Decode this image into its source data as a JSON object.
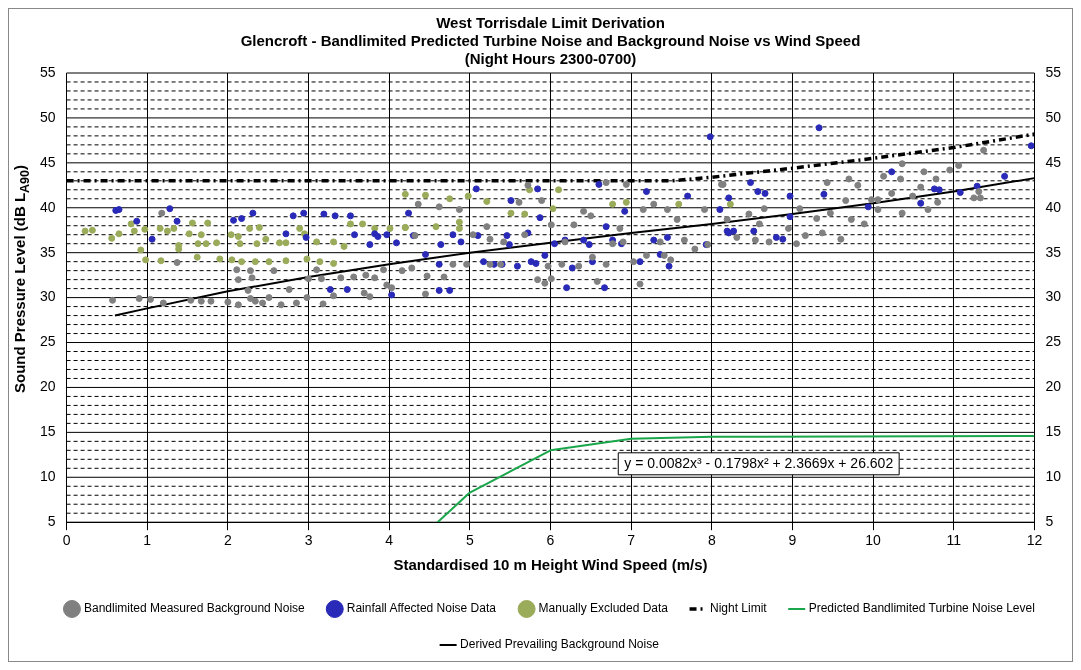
{
  "chart_data": {
    "type": "scatter",
    "title": "West Torrisdale Limit Derivation",
    "subtitle": "Glencroft - Bandlimited Predicted Turbine Noise and Background Noise vs Wind Speed\n(Night Hours 2300-0700)",
    "xlabel": "Standardised 10 m Height Wind Speed (m/s)",
    "ylabel": "Sound Pressure Level (dB L$_{A90}$)",
    "xlim": [
      0,
      12
    ],
    "xticks": [
      0,
      1,
      2,
      3,
      4,
      5,
      6,
      7,
      8,
      9,
      10,
      11,
      12
    ],
    "ylim": [
      5,
      55
    ],
    "yticks": [
      5,
      {
        "value": 6,
        "label": null
      },
      {
        "value": 7,
        "label": null
      },
      {
        "value": 8,
        "label": null
      },
      {
        "value": 9,
        "label": null
      },
      10,
      {
        "value": 11,
        "label": null
      },
      {
        "value": 12,
        "label": null
      },
      {
        "value": 13,
        "label": null
      },
      {
        "value": 14,
        "label": null
      },
      15,
      {
        "value": 16,
        "label": null
      },
      {
        "value": 17,
        "label": null
      },
      {
        "value": 18,
        "label": null
      },
      {
        "value": 19,
        "label": null
      },
      20,
      {
        "value": 21,
        "label": null
      },
      {
        "value": 22,
        "label": null
      },
      {
        "value": 23,
        "label": null
      },
      {
        "value": 24,
        "label": null
      },
      25,
      {
        "value": 26,
        "label": null
      },
      {
        "value": 27,
        "label": null
      },
      {
        "value": 28,
        "label": null
      },
      {
        "value": 29,
        "label": null
      },
      30,
      {
        "value": 31,
        "label": null
      },
      {
        "value": 32,
        "label": null
      },
      {
        "value": 33,
        "label": null
      },
      {
        "value": 34,
        "label": null
      },
      35,
      {
        "value": 36,
        "label": null
      },
      {
        "value": 37,
        "label": null
      },
      {
        "value": 38,
        "label": null
      },
      {
        "value": 39,
        "label": null
      },
      40,
      {
        "value": 41,
        "label": null
      },
      {
        "value": 42,
        "label": null
      },
      {
        "value": 43,
        "label": null
      },
      {
        "value": 44,
        "label": null
      },
      45,
      {
        "value": 46,
        "label": null
      },
      {
        "value": 47,
        "label": null
      },
      {
        "value": 48,
        "label": null
      },
      {
        "value": 49,
        "label": null
      },
      50,
      {
        "value": 51,
        "label": null
      },
      {
        "value": 52,
        "label": null
      },
      {
        "value": 53,
        "label": null
      },
      {
        "value": 54,
        "label": null
      },
      55
    ],
    "y2lim": [
      5,
      55
    ],
    "y2ticks": [
      5,
      10,
      15,
      20,
      25,
      30,
      35,
      40,
      45,
      50,
      55
    ],
    "grid": true,
    "legend": "bottom",
    "annotations": [
      "y = 0.0082x³ - 0.1798x² + 2.3669x + 26.602"
    ],
    "series": [
      {
        "name": "Bandlimited Measured Background Noise",
        "marker": "circle",
        "color": "#808080",
        "x": [
          0.57,
          0.9,
          1.04,
          1.18,
          1.37,
          1.2,
          1.54,
          1.67,
          1.79,
          2.0,
          2.13,
          2.11,
          2.13,
          2.28,
          2.3,
          2.25,
          2.28,
          2.34,
          2.43,
          2.51,
          2.57,
          2.66,
          2.76,
          2.85,
          2.98,
          3.0,
          3.1,
          3.16,
          3.18,
          3.31,
          3.4,
          3.56,
          3.69,
          3.71,
          3.76,
          3.82,
          3.93,
          3.97,
          4.03,
          4.16,
          4.28,
          4.32,
          4.36,
          4.45,
          4.47,
          4.62,
          4.68,
          4.79,
          4.87,
          4.96,
          5.04,
          5.21,
          5.25,
          5.25,
          5.38,
          5.42,
          5.61,
          5.68,
          5.72,
          5.84,
          5.89,
          5.93,
          5.97,
          6.01,
          6.01,
          6.14,
          6.18,
          6.29,
          6.35,
          6.41,
          6.5,
          6.52,
          6.58,
          6.69,
          6.77,
          6.86,
          6.9,
          6.94,
          7.03,
          7.11,
          7.15,
          7.19,
          7.28,
          7.36,
          7.41,
          7.45,
          7.49,
          7.57,
          7.66,
          7.79,
          7.91,
          7.95,
          8.12,
          6.69,
          8.14,
          8.19,
          8.31,
          8.46,
          8.59,
          8.65,
          8.54,
          8.71,
          8.95,
          9.05,
          9.09,
          9.16,
          9.3,
          9.37,
          9.43,
          9.47,
          9.6,
          9.66,
          9.7,
          9.73,
          9.81,
          9.89,
          9.98,
          10.06,
          10.13,
          10.23,
          10.34,
          10.36,
          10.36,
          10.49,
          10.59,
          10.63,
          10.68,
          10.78,
          10.8,
          10.95,
          11.06,
          11.25,
          11.31,
          11.33,
          11.37,
          10.06
        ],
        "values": [
          29.7,
          29.9,
          29.8,
          39.4,
          33.9,
          29.4,
          29.7,
          29.6,
          29.6,
          29.5,
          29.2,
          33.1,
          32.0,
          33.0,
          32.2,
          30.8,
          29.9,
          29.6,
          29.4,
          30.0,
          33.0,
          29.2,
          30.9,
          29.4,
          30.0,
          32.1,
          33.1,
          32.1,
          29.3,
          30.2,
          32.2,
          32.3,
          30.5,
          32.5,
          30.1,
          32.2,
          33.1,
          31.4,
          31.1,
          33.0,
          33.3,
          36.9,
          40.4,
          30.4,
          32.4,
          40.1,
          32.3,
          33.7,
          39.8,
          33.7,
          37.0,
          37.9,
          33.7,
          36.5,
          33.7,
          36.2,
          40.6,
          37.0,
          42.5,
          32.0,
          40.8,
          31.6,
          33.5,
          32.1,
          38.1,
          33.7,
          36.2,
          38.1,
          33.5,
          39.6,
          39.1,
          34.5,
          31.8,
          33.7,
          36.0,
          37.7,
          36.2,
          42.6,
          34.0,
          31.5,
          39.8,
          34.7,
          40.4,
          36.2,
          34.7,
          39.8,
          34.2,
          38.7,
          36.4,
          35.4,
          39.8,
          35.9,
          42.6,
          42.8,
          42.6,
          38.7,
          36.7,
          39.3,
          38.2,
          39.9,
          36.4,
          36.2,
          37.7,
          36.0,
          39.9,
          36.9,
          38.8,
          37.2,
          42.8,
          39.4,
          36.5,
          40.8,
          43.2,
          38.7,
          42.5,
          38.2,
          40.9,
          39.8,
          43.5,
          41.6,
          43.2,
          39.4,
          44.9,
          41.3,
          42.3,
          44.0,
          39.8,
          43.2,
          40.6,
          44.2,
          44.7,
          41.1,
          41.8,
          41.1,
          46.4,
          40.9
        ]
      },
      {
        "name": "Rainfall Affected Noise Data",
        "marker": "circle",
        "color": "#2a2ab8",
        "x": [
          0.61,
          0.65,
          0.87,
          1.06,
          1.28,
          1.37,
          2.07,
          2.17,
          2.31,
          2.81,
          2.94,
          3.19,
          3.33,
          3.52,
          2.72,
          2.97,
          3.57,
          3.76,
          3.82,
          3.86,
          3.97,
          4.09,
          3.27,
          3.48,
          4.03,
          4.24,
          4.3,
          4.45,
          4.62,
          4.62,
          4.75,
          4.64,
          4.79,
          4.89,
          5.1,
          5.08,
          5.17,
          5.3,
          5.4,
          5.46,
          5.49,
          5.51,
          5.59,
          5.72,
          5.76,
          5.82,
          5.84,
          5.87,
          5.93,
          6.05,
          6.18,
          6.2,
          6.27,
          6.41,
          6.48,
          6.52,
          6.6,
          6.67,
          6.69,
          6.77,
          6.88,
          6.92,
          7.11,
          7.19,
          7.28,
          7.36,
          7.45,
          7.47,
          7.7,
          7.93,
          8.1,
          8.21,
          7.98,
          8.48,
          8.57,
          8.66,
          8.97,
          8.97,
          9.33,
          9.39,
          9.94,
          10.23,
          10.59,
          10.76,
          10.82,
          11.08,
          11.29,
          11.63,
          11.96,
          8.21,
          8.27,
          8.19,
          8.52,
          8.8,
          8.88
        ],
        "values": [
          39.7,
          39.8,
          38.5,
          36.5,
          39.9,
          38.5,
          38.6,
          38.8,
          39.4,
          39.1,
          39.4,
          39.3,
          39.1,
          39.1,
          37.1,
          36.7,
          37.0,
          35.9,
          37.1,
          36.8,
          37.0,
          36.1,
          30.9,
          30.9,
          30.3,
          39.4,
          36.9,
          34.8,
          33.7,
          30.8,
          30.8,
          35.9,
          37.0,
          36.2,
          36.9,
          42.1,
          34.0,
          33.7,
          33.7,
          36.9,
          35.9,
          40.8,
          33.5,
          37.2,
          34.0,
          33.8,
          42.1,
          38.9,
          34.7,
          36.0,
          36.4,
          31.1,
          33.3,
          36.4,
          35.9,
          34.0,
          42.6,
          31.1,
          37.9,
          36.4,
          36.0,
          39.6,
          34.0,
          41.8,
          36.4,
          34.8,
          36.7,
          33.5,
          41.3,
          35.9,
          39.8,
          37.2,
          47.9,
          42.8,
          41.8,
          41.6,
          41.3,
          39.0,
          48.9,
          41.5,
          40.1,
          44.0,
          40.5,
          42.1,
          42.0,
          41.7,
          42.4,
          43.5,
          46.9,
          41.1,
          37.4,
          37.4,
          37.4,
          36.7,
          36.5
        ]
      },
      {
        "name": "Manually Excluded Data",
        "marker": "circle",
        "color": "#9aab5a",
        "x": [
          0.23,
          0.32,
          0.56,
          0.65,
          0.8,
          0.84,
          0.97,
          0.92,
          1.16,
          1.25,
          1.33,
          1.39,
          1.39,
          1.56,
          1.52,
          1.67,
          1.75,
          1.63,
          1.73,
          1.86,
          2.04,
          2.13,
          2.27,
          2.39,
          2.47,
          2.15,
          2.36,
          2.64,
          2.72,
          2.89,
          2.95,
          0.98,
          1.17,
          1.62,
          1.9,
          2.05,
          2.17,
          2.34,
          2.51,
          2.72,
          2.98,
          3.14,
          3.31,
          3.1,
          3.31,
          3.44,
          3.52,
          3.67,
          3.82,
          4.2,
          4.2,
          4.45,
          4.75,
          4.98,
          5.21,
          5.51,
          5.68,
          4.2,
          4.58,
          4.87,
          4.87,
          4.01,
          6.03,
          6.1,
          6.77,
          6.94,
          7.59,
          8.23,
          5.74
        ],
        "values": [
          37.4,
          37.5,
          36.6,
          37.1,
          38.2,
          37.4,
          37.6,
          35.3,
          37.7,
          37.4,
          37.7,
          35.8,
          35.4,
          38.3,
          37.1,
          37.0,
          38.3,
          36.0,
          36.0,
          36.1,
          37.0,
          36.8,
          37.7,
          37.8,
          36.5,
          36.0,
          36.0,
          36.1,
          36.1,
          37.7,
          37.1,
          34.2,
          34.1,
          34.5,
          34.3,
          34.2,
          34.0,
          34.0,
          34.0,
          34.1,
          34.3,
          34.0,
          33.8,
          36.2,
          36.2,
          35.7,
          38.2,
          38.2,
          37.7,
          37.8,
          41.5,
          41.4,
          41.0,
          41.3,
          40.7,
          39.4,
          39.3,
          37.8,
          37.9,
          38.4,
          37.7,
          37.7,
          39.9,
          42.0,
          40.4,
          40.6,
          40.4,
          40.4,
          42.0
        ]
      },
      {
        "name": "Night Limit",
        "type": "line",
        "marker": "none",
        "line_style": "dashed",
        "color": "#000000",
        "x": [
          0,
          7.5,
          8,
          9,
          10,
          11,
          12
        ],
        "values": [
          43,
          43,
          43.4,
          44.4,
          45.5,
          46.7,
          48.2
        ]
      },
      {
        "name": "Predicted Bandlimited Turbine Noise Level",
        "type": "line",
        "marker": "none",
        "line_style": "solid",
        "color": "#1aa64a",
        "x": [
          4.6,
          5,
          6,
          7,
          8,
          12
        ],
        "values": [
          5,
          8.3,
          13,
          14.3,
          14.5,
          14.6
        ]
      },
      {
        "name": "Derived Prevailing Background Noise",
        "type": "line",
        "marker": "none",
        "line_style": "solid",
        "color": "#000000",
        "x": [
          0.6,
          1,
          2,
          3,
          4,
          5,
          6,
          7,
          8,
          9,
          10,
          11,
          12
        ],
        "values": [
          28.0,
          28.8,
          30.7,
          32.3,
          33.7,
          35.0,
          36.1,
          37.2,
          38.2,
          39.3,
          40.5,
          41.8,
          43.3
        ]
      }
    ]
  }
}
